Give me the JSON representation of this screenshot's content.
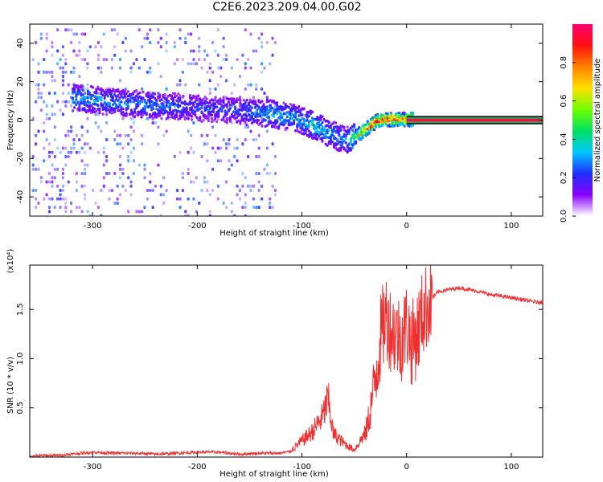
{
  "title": "C2E6.2023.209.04.00.G02",
  "chart_data": [
    {
      "type": "heatmap",
      "xlabel": "Height of straight line (km)",
      "ylabel": "Frequency (Hz)",
      "xlim": [
        -360,
        130
      ],
      "ylim": [
        -50,
        50
      ],
      "x_ticks": [
        -300,
        -200,
        -100,
        0,
        100
      ],
      "x_tick_labels": [
        "-300",
        "-200",
        "-100",
        "0",
        "100"
      ],
      "y_ticks": [
        -40,
        -20,
        0,
        20,
        40
      ],
      "y_tick_labels": [
        "-40",
        "-20",
        "0",
        "20",
        "40"
      ],
      "colorbar": {
        "label": "Normalized spectral amplitude",
        "range": [
          0,
          1
        ],
        "ticks": [
          0,
          0.2,
          0.4,
          0.6,
          0.8
        ],
        "tick_labels": [
          "0.0",
          "0.2",
          "0.4",
          "0.6",
          "0.8"
        ],
        "colors": [
          "#ffffff",
          "#8a00ff",
          "#2030ff",
          "#00c8ff",
          "#00e060",
          "#70ff00",
          "#ffe000",
          "#ff8000",
          "#ff1010",
          "#ff0070"
        ]
      },
      "ridge": {
        "x": [
          -310,
          -280,
          -250,
          -230,
          -200,
          -170,
          -150,
          -130,
          -110,
          -90,
          -75,
          -60,
          -50,
          -45,
          -40,
          -30,
          -20,
          -10,
          0,
          5,
          130
        ],
        "y": [
          12,
          10,
          9,
          8,
          7,
          6,
          5,
          4,
          2,
          -2,
          -6,
          -10,
          -8,
          -6,
          -4,
          0,
          1,
          1,
          1,
          1,
          0
        ],
        "amplitude": [
          0.35,
          0.3,
          0.3,
          0.28,
          0.25,
          0.25,
          0.3,
          0.35,
          0.35,
          0.4,
          0.35,
          0.3,
          0.6,
          0.8,
          0.85,
          0.9,
          0.9,
          0.85,
          0.8,
          0.95,
          0.95
        ]
      }
    },
    {
      "type": "line",
      "xlabel": "Height of straight line (km)",
      "ylabel": "SNR (10 * v/v)",
      "scale_label": "(x10⁴)",
      "xlim": [
        -360,
        130
      ],
      "ylim": [
        0,
        1.95
      ],
      "x_ticks": [
        -300,
        -200,
        -100,
        0,
        100
      ],
      "x_tick_labels": [
        "-300",
        "-200",
        "-100",
        "0",
        "100"
      ],
      "y_ticks": [
        0.5,
        1.0,
        1.5
      ],
      "y_tick_labels": [
        "0.5",
        "1.0",
        "1.5"
      ],
      "color": "#ee3030",
      "series": [
        {
          "x": [
            -360,
            -330,
            -300,
            -280,
            -260,
            -240,
            -200,
            -180,
            -160,
            -140,
            -120,
            -110,
            -100,
            -90,
            -80,
            -75,
            -70,
            -60,
            -50,
            -40,
            -35,
            -30,
            -25,
            -20,
            -15,
            -10,
            -5,
            0,
            5,
            10,
            15,
            20,
            25,
            30,
            40,
            50,
            60,
            70,
            80,
            100,
            110,
            120,
            130
          ],
          "y": [
            0.01,
            0.02,
            0.05,
            0.04,
            0.04,
            0.03,
            0.05,
            0.05,
            0.03,
            0.04,
            0.04,
            0.06,
            0.14,
            0.22,
            0.35,
            0.5,
            0.2,
            0.12,
            0.06,
            0.2,
            0.45,
            0.8,
            1.2,
            1.45,
            1.3,
            1.25,
            1.2,
            1.35,
            1.15,
            1.25,
            1.45,
            1.55,
            1.62,
            1.68,
            1.7,
            1.72,
            1.7,
            1.68,
            1.65,
            1.62,
            1.6,
            1.58,
            1.57
          ]
        }
      ]
    }
  ]
}
